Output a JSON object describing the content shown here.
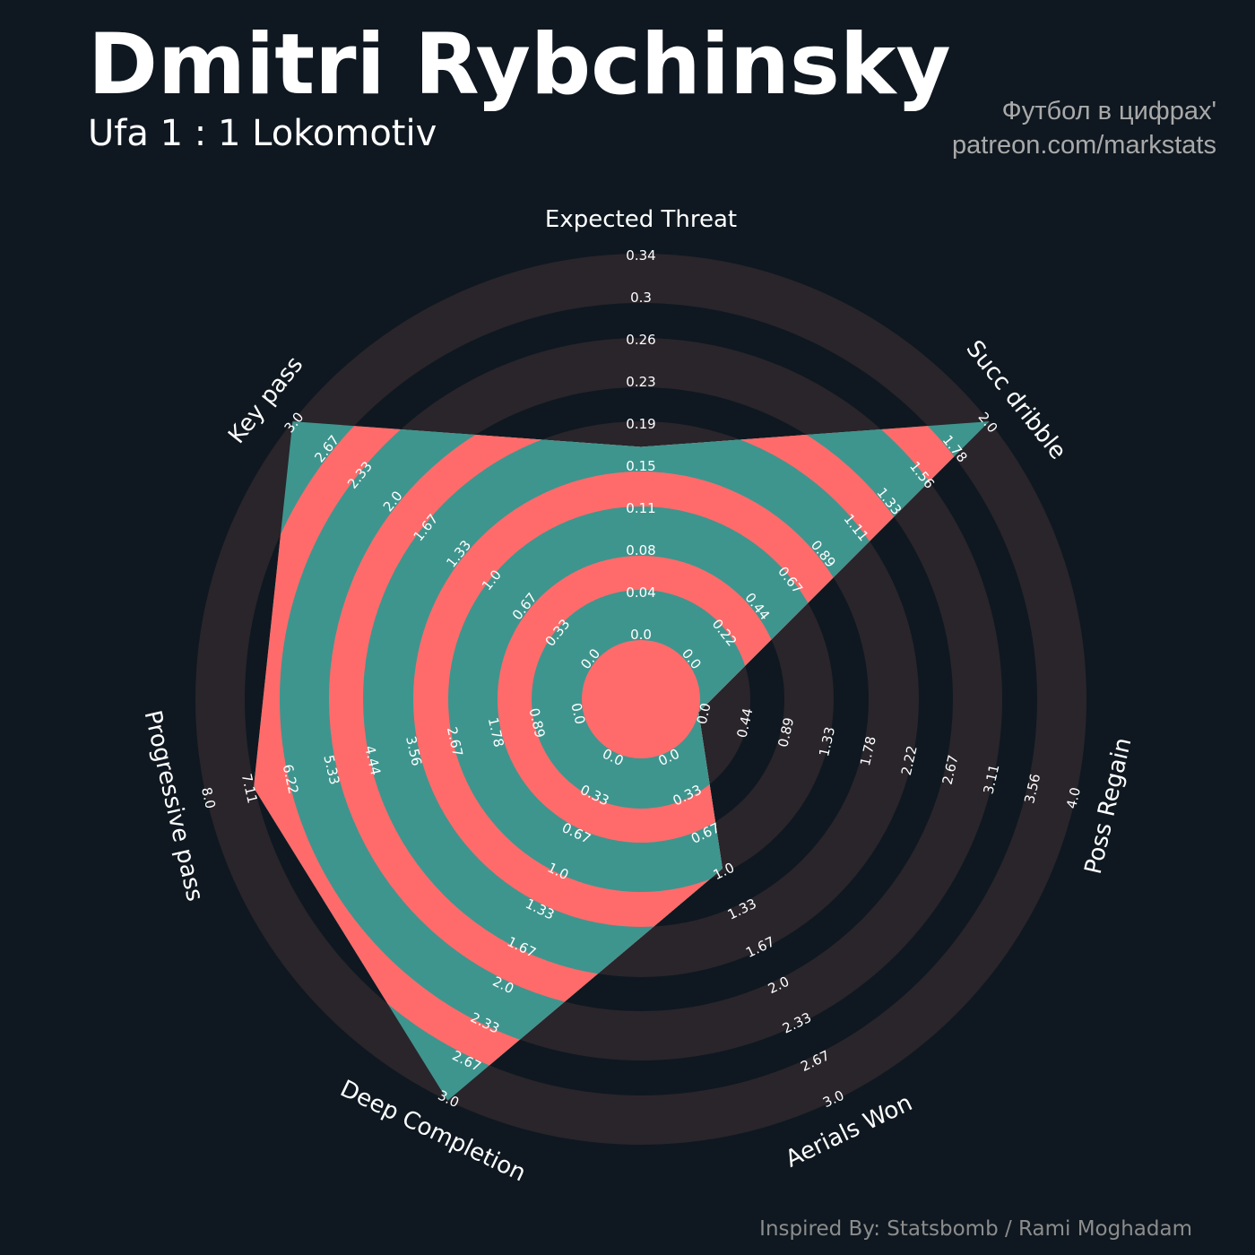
{
  "title": "Dmitri Rybchinsky",
  "subtitle": "Ufa 1 : 1 Lokomotiv",
  "credit_line1": "Футбол в цифрах'",
  "credit_line2": "patreon.com/markstats",
  "footer": "Inspired By: Statsbomb / Rami Moghadam",
  "colors": {
    "background": "#0f1820",
    "ring_dark": "#29252b",
    "fill_teal": "#3e958e",
    "fill_coral": "#ff6b6b",
    "text": "#ffffff"
  },
  "chart_data": {
    "type": "radar",
    "categories": [
      "Expected Threat",
      "Succ dribble",
      "Poss Regain",
      "Aerials Won",
      "Deep Completion",
      "Progressive pass",
      "Key pass"
    ],
    "ranges": [
      [
        0,
        0.34
      ],
      [
        0,
        2.0
      ],
      [
        0,
        4.0
      ],
      [
        0,
        3.0
      ],
      [
        0,
        3.0
      ],
      [
        0,
        8.0
      ],
      [
        0,
        3.0
      ]
    ],
    "values": [
      0.17,
      2.0,
      0.0,
      1.0,
      3.0,
      7.0,
      3.0
    ],
    "tick_labels": [
      [
        "0.0",
        "0.04",
        "0.08",
        "0.11",
        "0.15",
        "0.19",
        "0.23",
        "0.26",
        "0.3",
        "0.34"
      ],
      [
        "0.0",
        "0.22",
        "0.44",
        "0.67",
        "0.89",
        "1.11",
        "1.33",
        "1.56",
        "1.78",
        "2.0"
      ],
      [
        "0.0",
        "0.44",
        "0.89",
        "1.33",
        "1.78",
        "2.22",
        "2.67",
        "3.11",
        "3.56",
        "4.0"
      ],
      [
        "0.0",
        "0.33",
        "0.67",
        "1.0",
        "1.33",
        "1.67",
        "2.0",
        "2.33",
        "2.67",
        "3.0"
      ],
      [
        "0.0",
        "0.33",
        "0.67",
        "1.0",
        "1.33",
        "1.67",
        "2.0",
        "2.33",
        "2.67",
        "3.0"
      ],
      [
        "0.0",
        "0.89",
        "1.78",
        "2.67",
        "3.56",
        "4.44",
        "5.33",
        "6.22",
        "7.11",
        "8.0"
      ],
      [
        "0.0",
        "0.33",
        "0.67",
        "1.0",
        "1.33",
        "1.67",
        "2.0",
        "2.33",
        "2.67",
        "3.0"
      ]
    ]
  }
}
